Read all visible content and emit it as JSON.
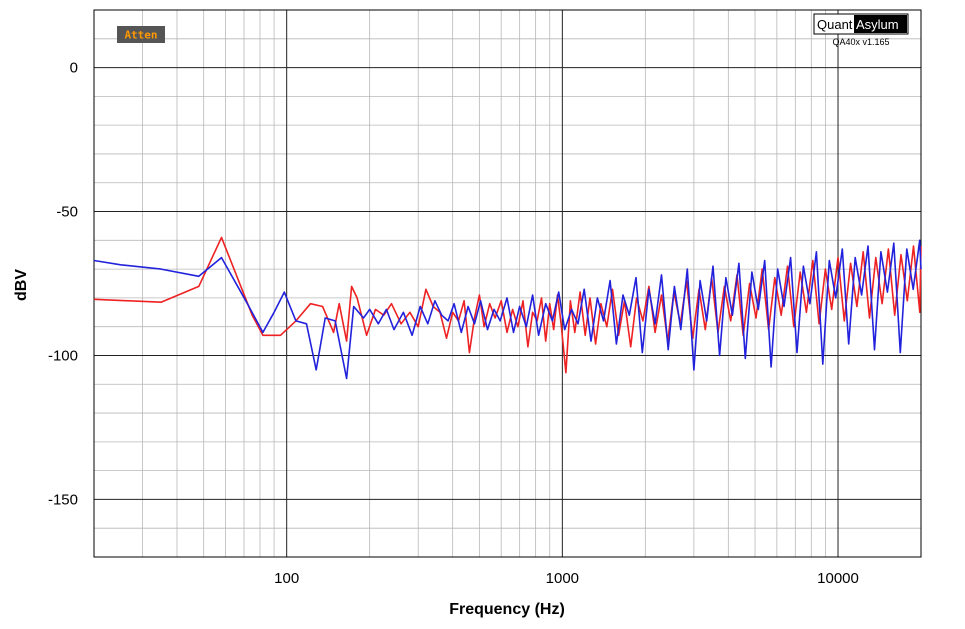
{
  "badge": {
    "label": "Atten",
    "bg": "#555555",
    "fg": "#ff9900"
  },
  "logo": {
    "part1": "Quant",
    "part2": "Asylum",
    "version": "QA40x v1.165"
  },
  "chart_data": {
    "type": "line",
    "title": "",
    "xlabel": "Frequency (Hz)",
    "ylabel": "dBV",
    "xscale": "log",
    "xlim": [
      20,
      20000
    ],
    "ylim": [
      -170,
      20
    ],
    "xticks": [
      100,
      1000,
      10000
    ],
    "yticks": [
      0,
      -50,
      -100,
      -150
    ],
    "grid": true,
    "legend": "none",
    "series": [
      {
        "color": "#ee2222",
        "points": [
          [
            20,
            -80.5
          ],
          [
            35,
            -81.5
          ],
          [
            48,
            -76
          ],
          [
            58,
            -59
          ],
          [
            75,
            -86
          ],
          [
            82,
            -93
          ],
          [
            95,
            -93
          ],
          [
            108,
            -88
          ],
          [
            122,
            -82
          ],
          [
            135,
            -83
          ],
          [
            148,
            -92
          ],
          [
            155,
            -82
          ],
          [
            165,
            -95
          ],
          [
            172,
            -76
          ],
          [
            180,
            -80
          ],
          [
            195,
            -93
          ],
          [
            210,
            -84
          ],
          [
            225,
            -86
          ],
          [
            240,
            -82
          ],
          [
            260,
            -89
          ],
          [
            280,
            -85
          ],
          [
            300,
            -90
          ],
          [
            320,
            -77
          ],
          [
            340,
            -83
          ],
          [
            360,
            -85
          ],
          [
            380,
            -94
          ],
          [
            400,
            -85
          ],
          [
            420,
            -88
          ],
          [
            440,
            -81
          ],
          [
            460,
            -99
          ],
          [
            480,
            -87
          ],
          [
            500,
            -79
          ],
          [
            520,
            -90
          ],
          [
            545,
            -82
          ],
          [
            570,
            -87
          ],
          [
            600,
            -81
          ],
          [
            630,
            -92
          ],
          [
            660,
            -84
          ],
          [
            690,
            -90
          ],
          [
            720,
            -81
          ],
          [
            750,
            -97
          ],
          [
            780,
            -85
          ],
          [
            810,
            -88
          ],
          [
            840,
            -80
          ],
          [
            870,
            -95
          ],
          [
            900,
            -82
          ],
          [
            930,
            -91
          ],
          [
            960,
            -79
          ],
          [
            990,
            -89
          ],
          [
            1030,
            -106
          ],
          [
            1070,
            -81
          ],
          [
            1110,
            -92
          ],
          [
            1160,
            -78
          ],
          [
            1210,
            -93
          ],
          [
            1260,
            -80
          ],
          [
            1320,
            -96
          ],
          [
            1380,
            -82
          ],
          [
            1450,
            -90
          ],
          [
            1520,
            -77
          ],
          [
            1600,
            -93
          ],
          [
            1680,
            -81
          ],
          [
            1770,
            -97
          ],
          [
            1860,
            -80
          ],
          [
            1960,
            -88
          ],
          [
            2060,
            -76
          ],
          [
            2170,
            -92
          ],
          [
            2290,
            -79
          ],
          [
            2410,
            -95
          ],
          [
            2540,
            -78
          ],
          [
            2680,
            -89
          ],
          [
            2820,
            -74
          ],
          [
            2970,
            -94
          ],
          [
            3130,
            -77
          ],
          [
            3300,
            -91
          ],
          [
            3480,
            -73
          ],
          [
            3670,
            -92
          ],
          [
            3870,
            -76
          ],
          [
            4080,
            -88
          ],
          [
            4300,
            -72
          ],
          [
            4530,
            -93
          ],
          [
            4780,
            -75
          ],
          [
            5040,
            -87
          ],
          [
            5310,
            -70
          ],
          [
            5600,
            -91
          ],
          [
            5900,
            -73
          ],
          [
            6220,
            -86
          ],
          [
            6560,
            -69
          ],
          [
            6910,
            -90
          ],
          [
            7290,
            -71
          ],
          [
            7680,
            -85
          ],
          [
            8100,
            -67
          ],
          [
            8540,
            -89
          ],
          [
            9000,
            -70
          ],
          [
            9490,
            -84
          ],
          [
            10000,
            -66
          ],
          [
            10540,
            -88
          ],
          [
            11110,
            -68
          ],
          [
            11710,
            -83
          ],
          [
            12340,
            -64
          ],
          [
            13010,
            -87
          ],
          [
            13710,
            -66
          ],
          [
            14450,
            -82
          ],
          [
            15230,
            -63
          ],
          [
            16050,
            -86
          ],
          [
            16920,
            -65
          ],
          [
            17830,
            -81
          ],
          [
            18790,
            -62
          ],
          [
            19800,
            -85
          ],
          [
            20000,
            -62
          ]
        ]
      },
      {
        "color": "#2222dd",
        "points": [
          [
            20,
            -67
          ],
          [
            25,
            -68.5
          ],
          [
            35,
            -70
          ],
          [
            48,
            -72.5
          ],
          [
            58,
            -66
          ],
          [
            72,
            -82
          ],
          [
            82,
            -92
          ],
          [
            90,
            -85
          ],
          [
            98,
            -78
          ],
          [
            108,
            -88
          ],
          [
            118,
            -89
          ],
          [
            128,
            -105
          ],
          [
            138,
            -87
          ],
          [
            150,
            -88
          ],
          [
            165,
            -108
          ],
          [
            175,
            -83
          ],
          [
            190,
            -87
          ],
          [
            200,
            -84
          ],
          [
            215,
            -89
          ],
          [
            230,
            -84
          ],
          [
            245,
            -91
          ],
          [
            265,
            -85
          ],
          [
            285,
            -93
          ],
          [
            305,
            -83
          ],
          [
            325,
            -89
          ],
          [
            345,
            -81
          ],
          [
            365,
            -86
          ],
          [
            385,
            -88
          ],
          [
            405,
            -82
          ],
          [
            430,
            -92
          ],
          [
            455,
            -83
          ],
          [
            480,
            -89
          ],
          [
            505,
            -81
          ],
          [
            535,
            -91
          ],
          [
            565,
            -84
          ],
          [
            595,
            -88
          ],
          [
            630,
            -80
          ],
          [
            665,
            -92
          ],
          [
            700,
            -83
          ],
          [
            740,
            -90
          ],
          [
            780,
            -79
          ],
          [
            820,
            -93
          ],
          [
            870,
            -82
          ],
          [
            920,
            -88
          ],
          [
            970,
            -78
          ],
          [
            1020,
            -91
          ],
          [
            1080,
            -84
          ],
          [
            1140,
            -89
          ],
          [
            1200,
            -77
          ],
          [
            1270,
            -95
          ],
          [
            1340,
            -80
          ],
          [
            1410,
            -88
          ],
          [
            1490,
            -74
          ],
          [
            1570,
            -96
          ],
          [
            1660,
            -79
          ],
          [
            1750,
            -86
          ],
          [
            1850,
            -73
          ],
          [
            1950,
            -99
          ],
          [
            2060,
            -77
          ],
          [
            2170,
            -89
          ],
          [
            2290,
            -72
          ],
          [
            2420,
            -98
          ],
          [
            2550,
            -76
          ],
          [
            2690,
            -91
          ],
          [
            2840,
            -70
          ],
          [
            3000,
            -105
          ],
          [
            3160,
            -74
          ],
          [
            3340,
            -88
          ],
          [
            3520,
            -69
          ],
          [
            3720,
            -100
          ],
          [
            3920,
            -73
          ],
          [
            4140,
            -86
          ],
          [
            4370,
            -68
          ],
          [
            4610,
            -101
          ],
          [
            4870,
            -71
          ],
          [
            5140,
            -84
          ],
          [
            5420,
            -67
          ],
          [
            5720,
            -104
          ],
          [
            6040,
            -70
          ],
          [
            6370,
            -83
          ],
          [
            6730,
            -66
          ],
          [
            7100,
            -99
          ],
          [
            7490,
            -69
          ],
          [
            7910,
            -82
          ],
          [
            8350,
            -64
          ],
          [
            8810,
            -103
          ],
          [
            9300,
            -67
          ],
          [
            9810,
            -80
          ],
          [
            10360,
            -63
          ],
          [
            10930,
            -96
          ],
          [
            11540,
            -66
          ],
          [
            12180,
            -79
          ],
          [
            12850,
            -62
          ],
          [
            13560,
            -98
          ],
          [
            14310,
            -64
          ],
          [
            15110,
            -78
          ],
          [
            15940,
            -61
          ],
          [
            16830,
            -99
          ],
          [
            17760,
            -63
          ],
          [
            18740,
            -77
          ],
          [
            19780,
            -60
          ],
          [
            20000,
            -70
          ]
        ]
      }
    ]
  }
}
